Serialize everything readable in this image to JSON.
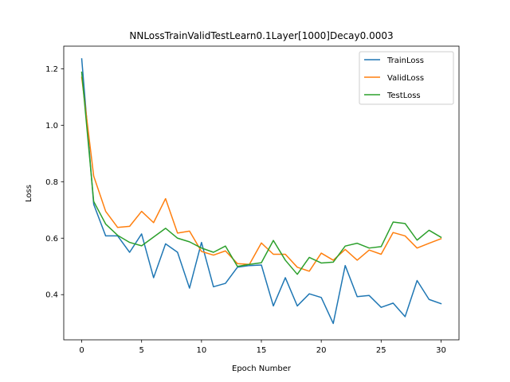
{
  "chart_data": {
    "type": "line",
    "title": "NNLossTrainValidTestLearn0.1Layer[1000]Decay0.0003",
    "xlabel": "Epoch Number",
    "ylabel": "Loss",
    "xlim": [
      -1.5,
      31.5
    ],
    "ylim": [
      0.24,
      1.28
    ],
    "xticks": [
      0,
      5,
      10,
      15,
      20,
      25,
      30
    ],
    "xtick_labels": [
      "0",
      "5",
      "10",
      "15",
      "20",
      "25",
      "30"
    ],
    "yticks": [
      0.4,
      0.6,
      0.8,
      1.0,
      1.2
    ],
    "ytick_labels": [
      "0.4",
      "0.6",
      "0.8",
      "1.0",
      "1.2"
    ],
    "grid": false,
    "legend_position": "top-right",
    "x": [
      0,
      1,
      2,
      3,
      4,
      5,
      6,
      7,
      8,
      9,
      10,
      11,
      12,
      13,
      14,
      15,
      16,
      17,
      18,
      19,
      20,
      21,
      22,
      23,
      24,
      25,
      26,
      27,
      28,
      29,
      30
    ],
    "series": [
      {
        "name": "TrainLoss",
        "color": "#1f77b4",
        "values": [
          1.235,
          0.72,
          0.608,
          0.608,
          0.55,
          0.615,
          0.46,
          0.58,
          0.55,
          0.423,
          0.585,
          0.428,
          0.44,
          0.497,
          0.503,
          0.505,
          0.36,
          0.46,
          0.36,
          0.403,
          0.39,
          0.298,
          0.503,
          0.393,
          0.397,
          0.355,
          0.37,
          0.322,
          0.45,
          0.383,
          0.368
        ]
      },
      {
        "name": "ValidLoss",
        "color": "#ff7f0e",
        "values": [
          1.17,
          0.82,
          0.695,
          0.638,
          0.642,
          0.695,
          0.655,
          0.74,
          0.618,
          0.625,
          0.553,
          0.54,
          0.555,
          0.51,
          0.507,
          0.583,
          0.543,
          0.543,
          0.497,
          0.483,
          0.547,
          0.522,
          0.56,
          0.522,
          0.558,
          0.543,
          0.62,
          0.608,
          0.565,
          0.582,
          0.598
        ]
      },
      {
        "name": "TestLoss",
        "color": "#2ca02c",
        "values": [
          1.188,
          0.73,
          0.65,
          0.61,
          0.585,
          0.573,
          0.604,
          0.635,
          0.6,
          0.587,
          0.565,
          0.55,
          0.572,
          0.5,
          0.507,
          0.513,
          0.592,
          0.522,
          0.472,
          0.532,
          0.512,
          0.515,
          0.572,
          0.582,
          0.565,
          0.57,
          0.657,
          0.652,
          0.593,
          0.628,
          0.603
        ]
      }
    ]
  }
}
